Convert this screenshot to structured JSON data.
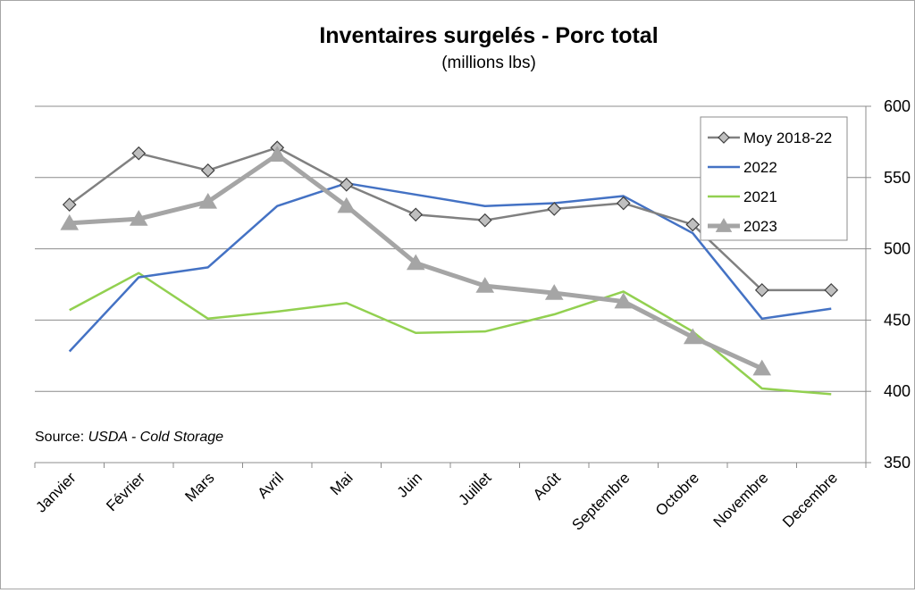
{
  "chart_data": {
    "type": "line",
    "title": "Inventaires surgelés - Porc total",
    "subtitle": "(millions lbs)",
    "xlabel": "",
    "ylabel": "",
    "categories": [
      "Janvier",
      "Février",
      "Mars",
      "Avril",
      "Mai",
      "Juin",
      "Juillet",
      "Août",
      "Septembre",
      "Octobre",
      "Novembre",
      "Decembre"
    ],
    "ylim": [
      350,
      600
    ],
    "yticks": [
      350,
      400,
      450,
      500,
      550,
      600
    ],
    "y_axis_position": "right",
    "grid": true,
    "legend_position": "top-right",
    "series": [
      {
        "name": "Moy 2018-22",
        "color": "#808080",
        "marker": "diamond",
        "values": [
          531,
          567,
          555,
          571,
          545,
          524,
          520,
          528,
          532,
          517,
          471,
          471
        ]
      },
      {
        "name": "2022",
        "color": "#4472c4",
        "marker": "none",
        "values": [
          428,
          480,
          487,
          530,
          546,
          538,
          530,
          532,
          537,
          511,
          451,
          458
        ]
      },
      {
        "name": "2021",
        "color": "#92d050",
        "marker": "none",
        "values": [
          457,
          483,
          451,
          456,
          462,
          441,
          442,
          454,
          470,
          442,
          402,
          398
        ]
      },
      {
        "name": "2023",
        "color": "#a5a5a5",
        "marker": "triangle",
        "values": [
          518,
          521,
          533,
          566,
          530,
          490,
          474,
          469,
          463,
          438,
          416,
          null
        ]
      }
    ]
  },
  "source": {
    "prefix": "Source: ",
    "name": "USDA - Cold Storage"
  }
}
